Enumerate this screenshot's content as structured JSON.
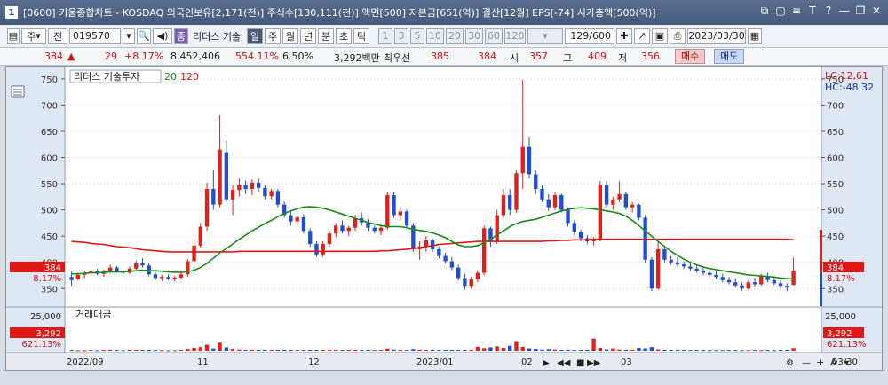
{
  "window": {
    "number": "1",
    "title": "[0600] 키움종합차트 - KOSDAQ 외국인보유[2,171(천)] 주식수[130,111(천)] 액면[500] 자본금[651(억)] 결산[12월] EPS[-74] 시가총액[500(억)]",
    "controls": [
      "⧉",
      "▢",
      "≡",
      "T",
      "?",
      "—",
      "❐",
      "✕"
    ]
  },
  "toolbar": {
    "market": "주",
    "prev": "전",
    "code": "019570",
    "search_icon": "search-icon",
    "speaker_icon": "speaker-icon",
    "name_badge": "중",
    "stock_name": "리더스 기술",
    "period_buttons": [
      "일",
      "주",
      "월",
      "년",
      "분",
      "초",
      "틱"
    ],
    "period_selected": "일",
    "interval_buttons": [
      "1",
      "3",
      "5",
      "10",
      "20",
      "30",
      "60",
      "120"
    ],
    "count": "129/600",
    "date": "2023/03/30"
  },
  "quote": {
    "price": "384",
    "arrow": "▲",
    "change": "29",
    "change_pct": "+8.17%",
    "volume": "8,452,406",
    "volume_ratio": "554.11%",
    "turnover": "6.50%",
    "amount": "3,292백만",
    "pref_label": "최우선",
    "ask": "385",
    "bid": "384",
    "open_label": "시",
    "open": "357",
    "high_label": "고",
    "high": "409",
    "low_label": "저",
    "low": "356",
    "buy_label": "매수",
    "sell_label": "매도"
  },
  "chart": {
    "legend_name": "리더스 기술투자",
    "ma_labels": [
      "20",
      "120"
    ],
    "lc": "LC:12,61",
    "hc": "HC:-48,32",
    "price_marker": "384",
    "pct_marker": "8.17%",
    "volume_title": "거래대금",
    "volume_axis_top": "25,000",
    "volume_marker": "3,292",
    "volume_pct": "621.13%",
    "x_labels": [
      "2022/09",
      "11",
      "12",
      "2023/01",
      "02",
      "03"
    ],
    "right_date": "03/30"
  },
  "chart_data": {
    "type": "candlestick",
    "price_ylim": [
      320,
      770
    ],
    "price_ticks": [
      350,
      400,
      450,
      500,
      550,
      600,
      650,
      700,
      750
    ],
    "volume_ylim": [
      0,
      27000
    ],
    "colors": {
      "up": "#e0201a",
      "down": "#1f4fd0",
      "ma20": "#1a8a1a",
      "ma120": "#e01818"
    },
    "candles": [
      {
        "o": 372,
        "h": 382,
        "l": 355,
        "c": 366
      },
      {
        "o": 368,
        "h": 380,
        "l": 365,
        "c": 376
      },
      {
        "o": 376,
        "h": 384,
        "l": 370,
        "c": 379
      },
      {
        "o": 379,
        "h": 386,
        "l": 374,
        "c": 383
      },
      {
        "o": 383,
        "h": 388,
        "l": 375,
        "c": 378
      },
      {
        "o": 378,
        "h": 386,
        "l": 372,
        "c": 384
      },
      {
        "o": 384,
        "h": 395,
        "l": 380,
        "c": 390
      },
      {
        "o": 390,
        "h": 393,
        "l": 380,
        "c": 383
      },
      {
        "o": 383,
        "h": 386,
        "l": 376,
        "c": 380
      },
      {
        "o": 380,
        "h": 392,
        "l": 378,
        "c": 388
      },
      {
        "o": 388,
        "h": 403,
        "l": 386,
        "c": 398
      },
      {
        "o": 398,
        "h": 408,
        "l": 390,
        "c": 394
      },
      {
        "o": 394,
        "h": 398,
        "l": 373,
        "c": 377
      },
      {
        "o": 377,
        "h": 382,
        "l": 366,
        "c": 370
      },
      {
        "o": 370,
        "h": 376,
        "l": 364,
        "c": 372
      },
      {
        "o": 372,
        "h": 377,
        "l": 366,
        "c": 368
      },
      {
        "o": 368,
        "h": 374,
        "l": 363,
        "c": 371
      },
      {
        "o": 371,
        "h": 380,
        "l": 368,
        "c": 377
      },
      {
        "o": 377,
        "h": 406,
        "l": 373,
        "c": 402
      },
      {
        "o": 402,
        "h": 445,
        "l": 398,
        "c": 432
      },
      {
        "o": 432,
        "h": 475,
        "l": 428,
        "c": 468
      },
      {
        "o": 468,
        "h": 552,
        "l": 460,
        "c": 540
      },
      {
        "o": 540,
        "h": 575,
        "l": 500,
        "c": 510
      },
      {
        "o": 510,
        "h": 680,
        "l": 505,
        "c": 615
      },
      {
        "o": 610,
        "h": 632,
        "l": 515,
        "c": 520
      },
      {
        "o": 520,
        "h": 548,
        "l": 490,
        "c": 538
      },
      {
        "o": 538,
        "h": 560,
        "l": 525,
        "c": 548
      },
      {
        "o": 548,
        "h": 556,
        "l": 530,
        "c": 540
      },
      {
        "o": 540,
        "h": 558,
        "l": 528,
        "c": 552
      },
      {
        "o": 552,
        "h": 560,
        "l": 535,
        "c": 542
      },
      {
        "o": 542,
        "h": 548,
        "l": 520,
        "c": 526
      },
      {
        "o": 526,
        "h": 540,
        "l": 520,
        "c": 536
      },
      {
        "o": 536,
        "h": 540,
        "l": 505,
        "c": 510
      },
      {
        "o": 510,
        "h": 515,
        "l": 485,
        "c": 490
      },
      {
        "o": 490,
        "h": 498,
        "l": 470,
        "c": 478
      },
      {
        "o": 478,
        "h": 490,
        "l": 470,
        "c": 486
      },
      {
        "o": 486,
        "h": 492,
        "l": 455,
        "c": 460
      },
      {
        "o": 460,
        "h": 465,
        "l": 430,
        "c": 435
      },
      {
        "o": 435,
        "h": 440,
        "l": 410,
        "c": 415
      },
      {
        "o": 415,
        "h": 440,
        "l": 410,
        "c": 435
      },
      {
        "o": 435,
        "h": 460,
        "l": 430,
        "c": 455
      },
      {
        "o": 455,
        "h": 475,
        "l": 448,
        "c": 470
      },
      {
        "o": 470,
        "h": 480,
        "l": 455,
        "c": 460
      },
      {
        "o": 460,
        "h": 470,
        "l": 450,
        "c": 466
      },
      {
        "o": 466,
        "h": 490,
        "l": 460,
        "c": 484
      },
      {
        "o": 484,
        "h": 495,
        "l": 470,
        "c": 476
      },
      {
        "o": 476,
        "h": 482,
        "l": 460,
        "c": 466
      },
      {
        "o": 466,
        "h": 470,
        "l": 455,
        "c": 460
      },
      {
        "o": 460,
        "h": 470,
        "l": 452,
        "c": 466
      },
      {
        "o": 466,
        "h": 535,
        "l": 462,
        "c": 528
      },
      {
        "o": 528,
        "h": 535,
        "l": 485,
        "c": 490
      },
      {
        "o": 490,
        "h": 505,
        "l": 480,
        "c": 497
      },
      {
        "o": 497,
        "h": 500,
        "l": 465,
        "c": 470
      },
      {
        "o": 470,
        "h": 475,
        "l": 420,
        "c": 425
      },
      {
        "o": 425,
        "h": 440,
        "l": 405,
        "c": 430
      },
      {
        "o": 430,
        "h": 450,
        "l": 420,
        "c": 442
      },
      {
        "o": 442,
        "h": 445,
        "l": 420,
        "c": 425
      },
      {
        "o": 425,
        "h": 430,
        "l": 408,
        "c": 412
      },
      {
        "o": 412,
        "h": 418,
        "l": 398,
        "c": 402
      },
      {
        "o": 402,
        "h": 410,
        "l": 385,
        "c": 390
      },
      {
        "o": 390,
        "h": 395,
        "l": 365,
        "c": 370
      },
      {
        "o": 370,
        "h": 378,
        "l": 348,
        "c": 355
      },
      {
        "o": 355,
        "h": 372,
        "l": 350,
        "c": 368
      },
      {
        "o": 368,
        "h": 385,
        "l": 362,
        "c": 380
      },
      {
        "o": 380,
        "h": 470,
        "l": 375,
        "c": 465
      },
      {
        "o": 465,
        "h": 468,
        "l": 430,
        "c": 440
      },
      {
        "o": 440,
        "h": 500,
        "l": 435,
        "c": 490
      },
      {
        "o": 490,
        "h": 540,
        "l": 485,
        "c": 528
      },
      {
        "o": 528,
        "h": 540,
        "l": 490,
        "c": 500
      },
      {
        "o": 500,
        "h": 575,
        "l": 495,
        "c": 570
      },
      {
        "o": 570,
        "h": 748,
        "l": 540,
        "c": 620
      },
      {
        "o": 620,
        "h": 640,
        "l": 560,
        "c": 568
      },
      {
        "o": 568,
        "h": 575,
        "l": 530,
        "c": 540
      },
      {
        "o": 540,
        "h": 548,
        "l": 515,
        "c": 520
      },
      {
        "o": 520,
        "h": 530,
        "l": 498,
        "c": 505
      },
      {
        "o": 505,
        "h": 535,
        "l": 500,
        "c": 528
      },
      {
        "o": 528,
        "h": 532,
        "l": 495,
        "c": 500
      },
      {
        "o": 500,
        "h": 505,
        "l": 468,
        "c": 475
      },
      {
        "o": 475,
        "h": 480,
        "l": 452,
        "c": 458
      },
      {
        "o": 458,
        "h": 462,
        "l": 440,
        "c": 446
      },
      {
        "o": 446,
        "h": 452,
        "l": 435,
        "c": 440
      },
      {
        "o": 440,
        "h": 448,
        "l": 432,
        "c": 444
      },
      {
        "o": 444,
        "h": 555,
        "l": 440,
        "c": 548
      },
      {
        "o": 548,
        "h": 555,
        "l": 505,
        "c": 510
      },
      {
        "o": 510,
        "h": 525,
        "l": 500,
        "c": 520
      },
      {
        "o": 520,
        "h": 555,
        "l": 515,
        "c": 530
      },
      {
        "o": 530,
        "h": 535,
        "l": 500,
        "c": 505
      },
      {
        "o": 505,
        "h": 515,
        "l": 495,
        "c": 510
      },
      {
        "o": 510,
        "h": 512,
        "l": 480,
        "c": 485
      },
      {
        "o": 485,
        "h": 490,
        "l": 400,
        "c": 405
      },
      {
        "o": 405,
        "h": 410,
        "l": 345,
        "c": 350
      },
      {
        "o": 350,
        "h": 440,
        "l": 348,
        "c": 425
      },
      {
        "o": 425,
        "h": 432,
        "l": 400,
        "c": 405
      },
      {
        "o": 405,
        "h": 412,
        "l": 395,
        "c": 400
      },
      {
        "o": 400,
        "h": 410,
        "l": 392,
        "c": 396
      },
      {
        "o": 396,
        "h": 402,
        "l": 388,
        "c": 392
      },
      {
        "o": 392,
        "h": 398,
        "l": 384,
        "c": 388
      },
      {
        "o": 388,
        "h": 395,
        "l": 380,
        "c": 384
      },
      {
        "o": 384,
        "h": 390,
        "l": 376,
        "c": 380
      },
      {
        "o": 380,
        "h": 386,
        "l": 372,
        "c": 376
      },
      {
        "o": 376,
        "h": 382,
        "l": 368,
        "c": 372
      },
      {
        "o": 372,
        "h": 378,
        "l": 362,
        "c": 366
      },
      {
        "o": 366,
        "h": 372,
        "l": 358,
        "c": 362
      },
      {
        "o": 362,
        "h": 368,
        "l": 352,
        "c": 356
      },
      {
        "o": 356,
        "h": 362,
        "l": 346,
        "c": 350
      },
      {
        "o": 350,
        "h": 366,
        "l": 348,
        "c": 362
      },
      {
        "o": 362,
        "h": 370,
        "l": 354,
        "c": 358
      },
      {
        "o": 358,
        "h": 378,
        "l": 356,
        "c": 374
      },
      {
        "o": 374,
        "h": 380,
        "l": 362,
        "c": 366
      },
      {
        "o": 366,
        "h": 372,
        "l": 356,
        "c": 360
      },
      {
        "o": 360,
        "h": 366,
        "l": 350,
        "c": 355
      },
      {
        "o": 355,
        "h": 360,
        "l": 345,
        "c": 352
      },
      {
        "o": 357,
        "h": 409,
        "l": 356,
        "c": 384
      }
    ],
    "volume": [
      700,
      500,
      600,
      900,
      500,
      800,
      1200,
      700,
      600,
      900,
      1500,
      1000,
      1100,
      800,
      600,
      500,
      600,
      900,
      2500,
      3500,
      4200,
      6500,
      3000,
      8500,
      4000,
      2500,
      2000,
      1500,
      1800,
      1400,
      1200,
      1300,
      1500,
      1200,
      1000,
      1100,
      1300,
      1400,
      1200,
      1100,
      1500,
      1600,
      1200,
      1100,
      1400,
      1100,
      900,
      800,
      900,
      2800,
      2000,
      1400,
      1600,
      2400,
      1800,
      1600,
      1200,
      1100,
      1000,
      1300,
      1500,
      1200,
      1500,
      4500,
      3200,
      4000,
      5000,
      3500,
      5500,
      10000,
      4500,
      3000,
      2500,
      2000,
      2400,
      2000,
      1500,
      1400,
      1200,
      1100,
      1200,
      12500,
      3500,
      2200,
      3000,
      2000,
      1800,
      1600,
      3500,
      3000,
      4200,
      2200,
      1400,
      1200,
      1000,
      900,
      900,
      800,
      700,
      700,
      600,
      700,
      800,
      700,
      600,
      700,
      800,
      600,
      700,
      600,
      900,
      1000,
      3292
    ],
    "ma20": [
      378,
      378,
      379,
      380,
      380,
      381,
      382,
      382,
      382,
      383,
      384,
      385,
      384,
      384,
      383,
      382,
      381,
      381,
      382,
      385,
      390,
      398,
      408,
      418,
      426,
      435,
      444,
      452,
      460,
      467,
      474,
      480,
      487,
      493,
      498,
      502,
      505,
      506,
      505,
      503,
      500,
      496,
      492,
      488,
      484,
      480,
      476,
      473,
      470,
      468,
      468,
      468,
      466,
      463,
      461,
      459,
      456,
      452,
      447,
      440,
      433,
      430,
      430,
      432,
      437,
      444,
      452,
      460,
      468,
      474,
      478,
      480,
      482,
      486,
      490,
      494,
      498,
      501,
      503,
      504,
      503,
      502,
      500,
      498,
      496,
      493,
      488,
      480,
      470,
      460,
      450,
      440,
      430,
      421,
      413,
      406,
      400,
      395,
      391,
      388,
      386,
      384,
      382,
      380,
      378,
      376,
      375,
      374,
      373,
      372,
      370,
      369,
      368
    ],
    "ma120": [
      440,
      439,
      438,
      436,
      435,
      434,
      432,
      430,
      429,
      428,
      426,
      424,
      423,
      422,
      421,
      420,
      420,
      420,
      420,
      420,
      420,
      420,
      420,
      420,
      420,
      420,
      421,
      421,
      421,
      421,
      421,
      421,
      421,
      421,
      421,
      421,
      421,
      421,
      421,
      421,
      421,
      421,
      421,
      421,
      421,
      421,
      421,
      421,
      422,
      422,
      423,
      424,
      425,
      426,
      428,
      430,
      432,
      434,
      435,
      436,
      437,
      438,
      439,
      440,
      440,
      440,
      440,
      440,
      440,
      440,
      440,
      440,
      440,
      440,
      441,
      441,
      442,
      442,
      443,
      443,
      443,
      444,
      444,
      444,
      444,
      444,
      444,
      444,
      444,
      444,
      444,
      444,
      444,
      444,
      444,
      444,
      444,
      444,
      444,
      444,
      444,
      444,
      444,
      444,
      444,
      444,
      444,
      444,
      444,
      444,
      444,
      444,
      443
    ]
  }
}
